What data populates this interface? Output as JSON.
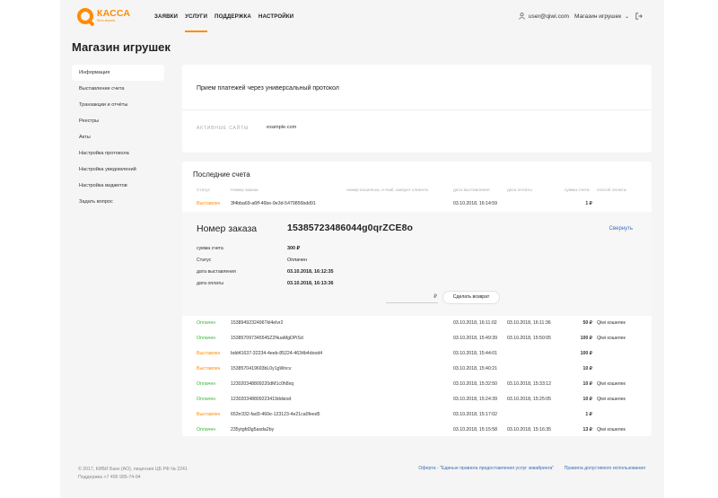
{
  "app": {
    "logo_title": "КАССА",
    "logo_sub": "бета-версия"
  },
  "nav": [
    {
      "label": "ЗАЯВКИ",
      "active": false
    },
    {
      "label": "УСЛУГИ",
      "active": true
    },
    {
      "label": "ПОДДЕРЖКА",
      "active": false
    },
    {
      "label": "НАСТРОЙКИ",
      "active": false
    }
  ],
  "user": {
    "email": "user@qiwi.com",
    "shop": "Магазин игрушек"
  },
  "page_title": "Магазин игрушек",
  "sidebar": [
    {
      "label": "Информация",
      "active": true
    },
    {
      "label": "Выставление счета",
      "active": false
    },
    {
      "label": "Транзакции и отчёты",
      "active": false
    },
    {
      "label": "Реестры",
      "active": false
    },
    {
      "label": "Акты",
      "active": false
    },
    {
      "label": "Настройка протокола",
      "active": false
    },
    {
      "label": "Настройка уведомлений",
      "active": false
    },
    {
      "label": "Настройка виджетов",
      "active": false
    },
    {
      "label": "Задать вопрос",
      "active": false
    }
  ],
  "protocol_card": {
    "heading": "Прием платежей через универсальный протокол",
    "active_sites_label": "АКТИВНЫЕ САЙТЫ",
    "active_sites_value": "example.com"
  },
  "invoices": {
    "heading": "Последние счета",
    "columns": [
      "Статус",
      "Номер заказа",
      "номер кошелька, e-mail, аккаунт клиента",
      "дата выставления",
      "дата оплаты",
      "сумма счета",
      "способ оплаты"
    ],
    "first_row": {
      "status": "Выставлен",
      "status_type": "sent",
      "order": "3f4bba69-a6ff-46be-9e3d-5479856bdd91",
      "client": "",
      "issued": "03.10.2018, 16:14:59",
      "paid": "",
      "amount": "1 ₽",
      "method": ""
    },
    "expanded": {
      "title": "Номер заказа",
      "number": "15385723486044g0qrZCE8o",
      "collapse": "Свернуть",
      "fields": [
        {
          "label": "сумма счета",
          "value": "300 ₽",
          "type": ""
        },
        {
          "label": "Статус",
          "value": "Оплачен",
          "type": "paid"
        },
        {
          "label": "дата выставления",
          "value": "03.10.2018, 16:12:35",
          "type": ""
        },
        {
          "label": "дата оплаты",
          "value": "03.10.2018, 16:13:36",
          "type": ""
        }
      ],
      "refund_currency": "₽",
      "refund_button": "Сделать возврат"
    },
    "rows": [
      {
        "status": "Оплачен",
        "status_type": "paid",
        "order": "1538949232496Tkl4elvr2",
        "issued": "03.10.2018, 16:11:02",
        "paid": "03.10.2018, 16:11:36",
        "amount": "50 ₽",
        "method": "Qiwi кошелек"
      },
      {
        "status": "Оплачен",
        "status_type": "paid",
        "order": "153857097345545Z2NuaMgDPiSd",
        "issued": "03.10.2018, 15:49:39",
        "paid": "03.10.2018, 15:50:05",
        "amount": "100 ₽",
        "method": "Qiwi кошелек"
      },
      {
        "status": "Выставлен",
        "status_type": "sent",
        "order": "bdd41637-32234-4eeb-85224-4634b4dood4",
        "issued": "03.10.2018, 15:44:01",
        "paid": "",
        "amount": "100 ₽",
        "method": ""
      },
      {
        "status": "Выставлен",
        "status_type": "sent",
        "order": "1538570419693bL0y1gWncv",
        "issued": "03.10.2018, 15:40:21",
        "paid": "",
        "amount": "10 ₽",
        "method": ""
      },
      {
        "status": "Оплачен",
        "status_type": "paid",
        "order": "123020348809220dM1c0h8xq",
        "issued": "03.10.2018, 15:32:50",
        "paid": "03.10.2018, 15:33:12",
        "amount": "10 ₽",
        "method": "Qiwi кошелек"
      },
      {
        "status": "Оплачен",
        "status_type": "paid",
        "order": "123020348809223419ddsiod",
        "issued": "03.10.2018, 15:24:39",
        "paid": "03.10.2018, 15:25:05",
        "amount": "10 ₽",
        "method": "Qiwi кошелек"
      },
      {
        "status": "Выставлен",
        "status_type": "sent",
        "order": "653rr332-fad3-460e-123123-4e21ca0feed5",
        "issued": "03.10.2018, 15:17:02",
        "paid": "",
        "amount": "1 ₽",
        "method": ""
      },
      {
        "status": "Оплачен",
        "status_type": "paid",
        "order": "235ytgfd3g5asda2by",
        "issued": "03.10.2018, 15:15:58",
        "paid": "03.10.2018, 15:16:35",
        "amount": "13 ₽",
        "method": "Qiwi кошелек"
      }
    ]
  },
  "footer": {
    "copyright": "© 2017, КИВИ Банк (АО), лицензия ЦБ РФ № 2241",
    "support": "Поддержка +7 495 995-74-94",
    "offer_link": "Оферта - \"Единые правила предоставления услуг эквайринга\"",
    "rules_link": "Правила допустимого использования"
  },
  "colors": {
    "accent": "#ff8c00",
    "paid": "#3cb43c",
    "link": "#3b6fb6"
  }
}
